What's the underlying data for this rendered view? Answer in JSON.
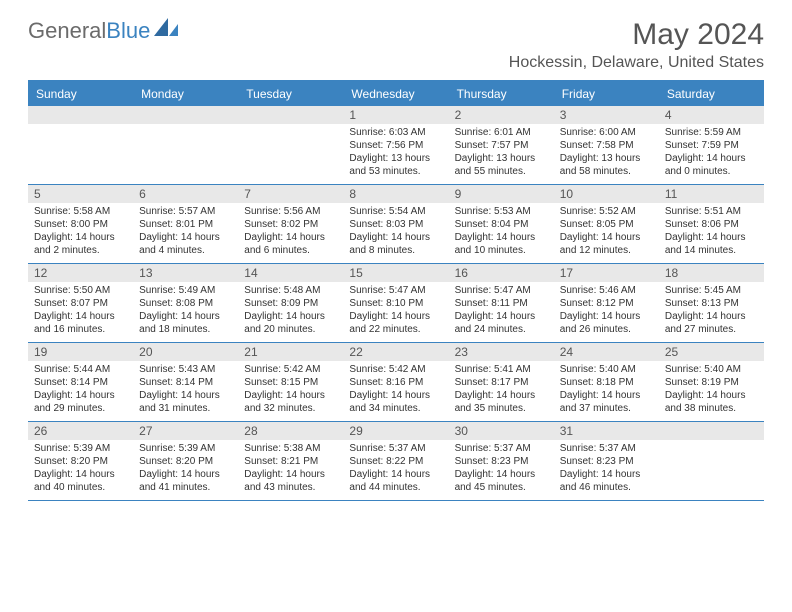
{
  "logo": {
    "part1": "General",
    "part2": "Blue"
  },
  "title": "May 2024",
  "location": "Hockessin, Delaware, United States",
  "header_color": "#3b83c0",
  "daynum_bg": "#e8e8e8",
  "text_color": "#333333",
  "weekdays": [
    "Sunday",
    "Monday",
    "Tuesday",
    "Wednesday",
    "Thursday",
    "Friday",
    "Saturday"
  ],
  "weeks": [
    [
      null,
      null,
      null,
      {
        "n": "1",
        "sr": "Sunrise: 6:03 AM",
        "ss": "Sunset: 7:56 PM",
        "d1": "Daylight: 13 hours",
        "d2": "and 53 minutes."
      },
      {
        "n": "2",
        "sr": "Sunrise: 6:01 AM",
        "ss": "Sunset: 7:57 PM",
        "d1": "Daylight: 13 hours",
        "d2": "and 55 minutes."
      },
      {
        "n": "3",
        "sr": "Sunrise: 6:00 AM",
        "ss": "Sunset: 7:58 PM",
        "d1": "Daylight: 13 hours",
        "d2": "and 58 minutes."
      },
      {
        "n": "4",
        "sr": "Sunrise: 5:59 AM",
        "ss": "Sunset: 7:59 PM",
        "d1": "Daylight: 14 hours",
        "d2": "and 0 minutes."
      }
    ],
    [
      {
        "n": "5",
        "sr": "Sunrise: 5:58 AM",
        "ss": "Sunset: 8:00 PM",
        "d1": "Daylight: 14 hours",
        "d2": "and 2 minutes."
      },
      {
        "n": "6",
        "sr": "Sunrise: 5:57 AM",
        "ss": "Sunset: 8:01 PM",
        "d1": "Daylight: 14 hours",
        "d2": "and 4 minutes."
      },
      {
        "n": "7",
        "sr": "Sunrise: 5:56 AM",
        "ss": "Sunset: 8:02 PM",
        "d1": "Daylight: 14 hours",
        "d2": "and 6 minutes."
      },
      {
        "n": "8",
        "sr": "Sunrise: 5:54 AM",
        "ss": "Sunset: 8:03 PM",
        "d1": "Daylight: 14 hours",
        "d2": "and 8 minutes."
      },
      {
        "n": "9",
        "sr": "Sunrise: 5:53 AM",
        "ss": "Sunset: 8:04 PM",
        "d1": "Daylight: 14 hours",
        "d2": "and 10 minutes."
      },
      {
        "n": "10",
        "sr": "Sunrise: 5:52 AM",
        "ss": "Sunset: 8:05 PM",
        "d1": "Daylight: 14 hours",
        "d2": "and 12 minutes."
      },
      {
        "n": "11",
        "sr": "Sunrise: 5:51 AM",
        "ss": "Sunset: 8:06 PM",
        "d1": "Daylight: 14 hours",
        "d2": "and 14 minutes."
      }
    ],
    [
      {
        "n": "12",
        "sr": "Sunrise: 5:50 AM",
        "ss": "Sunset: 8:07 PM",
        "d1": "Daylight: 14 hours",
        "d2": "and 16 minutes."
      },
      {
        "n": "13",
        "sr": "Sunrise: 5:49 AM",
        "ss": "Sunset: 8:08 PM",
        "d1": "Daylight: 14 hours",
        "d2": "and 18 minutes."
      },
      {
        "n": "14",
        "sr": "Sunrise: 5:48 AM",
        "ss": "Sunset: 8:09 PM",
        "d1": "Daylight: 14 hours",
        "d2": "and 20 minutes."
      },
      {
        "n": "15",
        "sr": "Sunrise: 5:47 AM",
        "ss": "Sunset: 8:10 PM",
        "d1": "Daylight: 14 hours",
        "d2": "and 22 minutes."
      },
      {
        "n": "16",
        "sr": "Sunrise: 5:47 AM",
        "ss": "Sunset: 8:11 PM",
        "d1": "Daylight: 14 hours",
        "d2": "and 24 minutes."
      },
      {
        "n": "17",
        "sr": "Sunrise: 5:46 AM",
        "ss": "Sunset: 8:12 PM",
        "d1": "Daylight: 14 hours",
        "d2": "and 26 minutes."
      },
      {
        "n": "18",
        "sr": "Sunrise: 5:45 AM",
        "ss": "Sunset: 8:13 PM",
        "d1": "Daylight: 14 hours",
        "d2": "and 27 minutes."
      }
    ],
    [
      {
        "n": "19",
        "sr": "Sunrise: 5:44 AM",
        "ss": "Sunset: 8:14 PM",
        "d1": "Daylight: 14 hours",
        "d2": "and 29 minutes."
      },
      {
        "n": "20",
        "sr": "Sunrise: 5:43 AM",
        "ss": "Sunset: 8:14 PM",
        "d1": "Daylight: 14 hours",
        "d2": "and 31 minutes."
      },
      {
        "n": "21",
        "sr": "Sunrise: 5:42 AM",
        "ss": "Sunset: 8:15 PM",
        "d1": "Daylight: 14 hours",
        "d2": "and 32 minutes."
      },
      {
        "n": "22",
        "sr": "Sunrise: 5:42 AM",
        "ss": "Sunset: 8:16 PM",
        "d1": "Daylight: 14 hours",
        "d2": "and 34 minutes."
      },
      {
        "n": "23",
        "sr": "Sunrise: 5:41 AM",
        "ss": "Sunset: 8:17 PM",
        "d1": "Daylight: 14 hours",
        "d2": "and 35 minutes."
      },
      {
        "n": "24",
        "sr": "Sunrise: 5:40 AM",
        "ss": "Sunset: 8:18 PM",
        "d1": "Daylight: 14 hours",
        "d2": "and 37 minutes."
      },
      {
        "n": "25",
        "sr": "Sunrise: 5:40 AM",
        "ss": "Sunset: 8:19 PM",
        "d1": "Daylight: 14 hours",
        "d2": "and 38 minutes."
      }
    ],
    [
      {
        "n": "26",
        "sr": "Sunrise: 5:39 AM",
        "ss": "Sunset: 8:20 PM",
        "d1": "Daylight: 14 hours",
        "d2": "and 40 minutes."
      },
      {
        "n": "27",
        "sr": "Sunrise: 5:39 AM",
        "ss": "Sunset: 8:20 PM",
        "d1": "Daylight: 14 hours",
        "d2": "and 41 minutes."
      },
      {
        "n": "28",
        "sr": "Sunrise: 5:38 AM",
        "ss": "Sunset: 8:21 PM",
        "d1": "Daylight: 14 hours",
        "d2": "and 43 minutes."
      },
      {
        "n": "29",
        "sr": "Sunrise: 5:37 AM",
        "ss": "Sunset: 8:22 PM",
        "d1": "Daylight: 14 hours",
        "d2": "and 44 minutes."
      },
      {
        "n": "30",
        "sr": "Sunrise: 5:37 AM",
        "ss": "Sunset: 8:23 PM",
        "d1": "Daylight: 14 hours",
        "d2": "and 45 minutes."
      },
      {
        "n": "31",
        "sr": "Sunrise: 5:37 AM",
        "ss": "Sunset: 8:23 PM",
        "d1": "Daylight: 14 hours",
        "d2": "and 46 minutes."
      },
      null
    ]
  ]
}
